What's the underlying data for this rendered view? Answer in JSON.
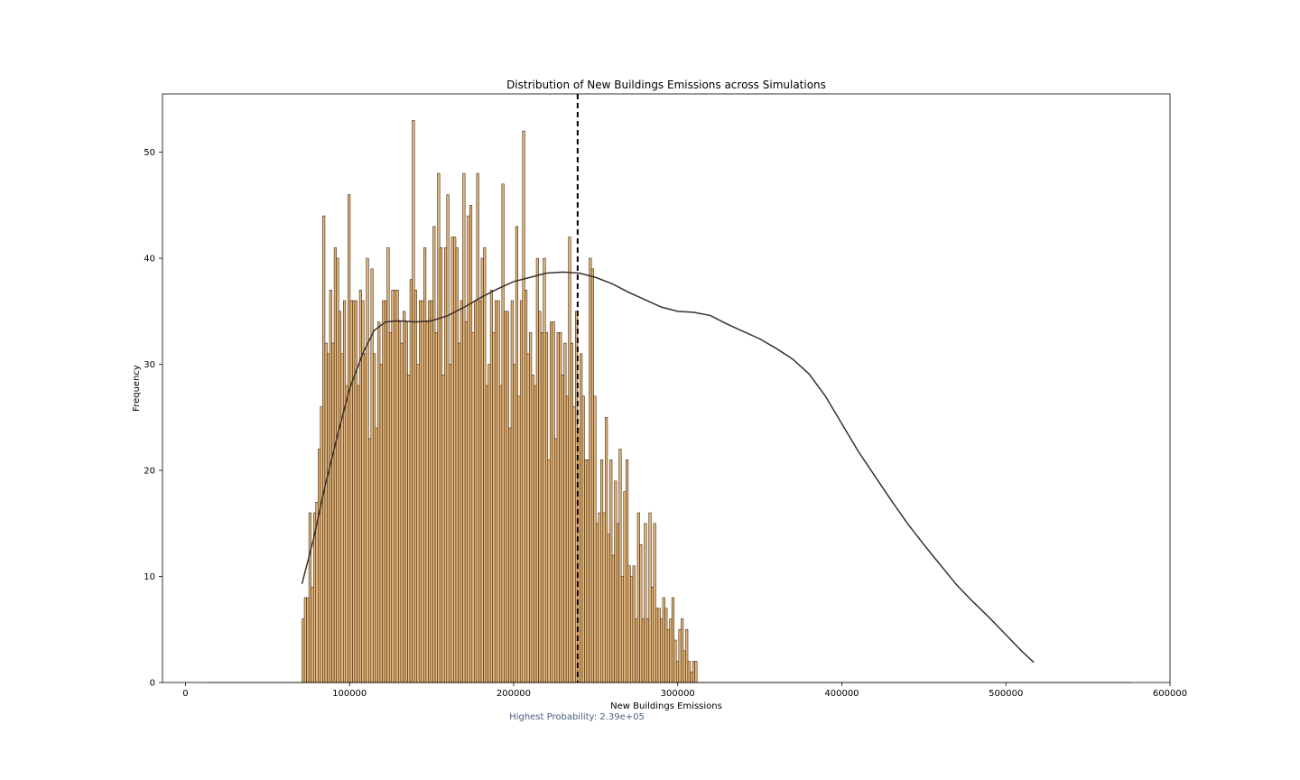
{
  "chart_data": {
    "type": "bar",
    "title": "Distribution of New Buildings Emissions across Simulations",
    "xlabel": "New Buildings Emissions",
    "ylabel": "Frequency",
    "annotation": "Highest Probability: 2.39e+05",
    "highest_probability": 239000,
    "xlim": [
      -14000,
      600000
    ],
    "ylim": [
      0,
      55.5
    ],
    "xticks": [
      0,
      100000,
      200000,
      300000,
      400000,
      500000,
      600000
    ],
    "yticks": [
      0,
      10,
      20,
      30,
      40,
      50
    ],
    "bin_start": 71000,
    "bin_width": 1400,
    "frequencies": [
      6,
      8,
      8,
      16,
      9,
      16,
      17,
      22,
      26,
      44,
      32,
      31,
      37,
      32,
      41,
      40,
      35,
      31,
      36,
      28,
      46,
      36,
      36,
      36,
      28,
      37,
      36,
      31,
      40,
      23,
      39,
      31,
      24,
      34,
      30,
      36,
      36,
      41,
      33,
      37,
      37,
      37,
      34,
      32,
      35,
      34,
      29,
      38,
      53,
      37,
      30,
      36,
      36,
      41,
      34,
      36,
      36,
      43,
      33,
      48,
      41,
      29,
      41,
      46,
      30,
      42,
      42,
      41,
      32,
      36,
      48,
      34,
      44,
      45,
      33,
      36,
      48,
      36,
      40,
      41,
      28,
      30,
      37,
      33,
      36,
      36,
      28,
      47,
      35,
      35,
      24,
      36,
      30,
      43,
      27,
      36,
      52,
      37,
      31,
      33,
      29,
      28,
      40,
      35,
      33,
      40,
      33,
      21,
      34,
      34,
      23,
      33,
      33,
      29,
      32,
      27,
      42,
      32,
      26,
      35,
      24,
      31,
      27,
      21,
      21,
      40,
      39,
      27,
      15,
      16,
      21,
      16,
      25,
      14,
      21,
      12,
      19,
      15,
      22,
      10,
      18,
      21,
      11,
      10,
      11,
      6,
      16,
      13,
      6,
      15,
      6,
      16,
      9,
      15,
      7,
      7,
      6,
      8,
      7,
      5,
      6,
      8,
      4,
      2,
      5,
      6,
      3,
      5,
      2,
      1,
      2,
      2
    ],
    "kde": {
      "x": [
        71000,
        78000,
        85000,
        93000,
        100000,
        108000,
        115000,
        122000,
        130000,
        140000,
        150000,
        160000,
        170000,
        180000,
        190000,
        200000,
        210000,
        220000,
        230000,
        240000,
        250000,
        260000,
        270000,
        280000,
        290000,
        300000,
        310000,
        320000,
        330000,
        340000,
        350000,
        360000,
        370000,
        380000,
        390000,
        400000,
        410000,
        420000,
        430000,
        440000,
        450000,
        460000,
        470000,
        480000,
        490000,
        500000,
        510000,
        517000
      ],
      "y": [
        9.3,
        13.5,
        18.5,
        23.5,
        27.7,
        31.0,
        33.2,
        34.0,
        34.1,
        34.0,
        34.1,
        34.6,
        35.4,
        36.3,
        37.1,
        37.8,
        38.2,
        38.6,
        38.7,
        38.6,
        38.2,
        37.6,
        36.8,
        36.1,
        35.4,
        35.0,
        34.9,
        34.6,
        33.8,
        33.1,
        32.4,
        31.5,
        30.5,
        29.1,
        27.0,
        24.4,
        21.8,
        19.5,
        17.2,
        15.0,
        13.0,
        11.1,
        9.2,
        7.6,
        6.1,
        4.5,
        2.9,
        1.9
      ]
    },
    "colors": {
      "bar_fill": "#e7b678",
      "bar_edge": "#3a2a1a",
      "kde_line": "#3b302a",
      "vline": "#000000",
      "annotation": "#4a6080"
    },
    "grid": false,
    "legend": "none"
  }
}
